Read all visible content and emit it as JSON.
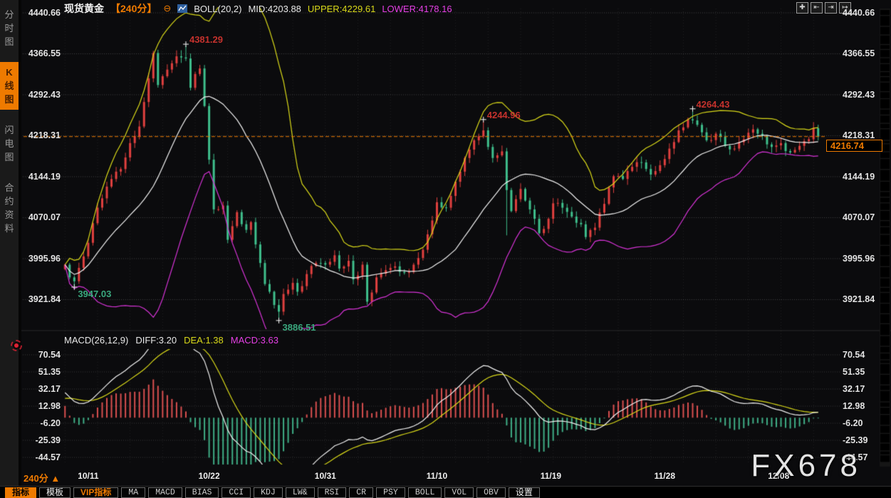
{
  "app": {
    "watermark": "FX678"
  },
  "sidebar": {
    "tabs": [
      {
        "name": "time-share-chart",
        "label": "分时图",
        "active": false
      },
      {
        "name": "kline-chart",
        "label": "K线图",
        "active": true
      },
      {
        "name": "flash-chart",
        "label": "闪电图",
        "active": false
      },
      {
        "name": "contract-info",
        "label": "合约资料",
        "active": false
      }
    ]
  },
  "header": {
    "symbol": "现货黄金",
    "period": "【240分】",
    "minus_icon": "⊖",
    "boll": "BOLL(20,2)",
    "mid": "MID:4203.88",
    "upper": "UPPER:4229.61",
    "lower": "LOWER:4178.16"
  },
  "window_controls": [
    {
      "name": "pan-icon",
      "glyph": "✚"
    },
    {
      "name": "scale-x-left-icon",
      "glyph": "⇤"
    },
    {
      "name": "scale-x-right-icon",
      "glyph": "⇥"
    },
    {
      "name": "shift-right-icon",
      "glyph": "↦"
    }
  ],
  "macd_header": {
    "title": "MACD(26,12,9)",
    "diff": "DIFF:3.20",
    "dea": "DEA:1.38",
    "macd": "MACD:3.63"
  },
  "footer": {
    "period": "240分",
    "arrow": "▲"
  },
  "toolbar": {
    "items": [
      {
        "name": "indicator",
        "label": "指标",
        "style": "active",
        "cjk": true
      },
      {
        "name": "template",
        "label": "模板",
        "style": "normal",
        "cjk": true
      },
      {
        "name": "vip-indicator",
        "label": "VIP指标",
        "style": "vip",
        "cjk": true
      },
      {
        "name": "ma",
        "label": "MA",
        "style": "normal",
        "cjk": false
      },
      {
        "name": "macd",
        "label": "MACD",
        "style": "normal",
        "cjk": false
      },
      {
        "name": "bias",
        "label": "BIAS",
        "style": "normal",
        "cjk": false
      },
      {
        "name": "cci",
        "label": "CCI",
        "style": "normal",
        "cjk": false
      },
      {
        "name": "kdj",
        "label": "KDJ",
        "style": "normal",
        "cjk": false
      },
      {
        "name": "lw",
        "label": "LW&",
        "style": "normal",
        "cjk": false
      },
      {
        "name": "rsi",
        "label": "RSI",
        "style": "normal",
        "cjk": false
      },
      {
        "name": "cr",
        "label": "CR",
        "style": "normal",
        "cjk": false
      },
      {
        "name": "psy",
        "label": "PSY",
        "style": "normal",
        "cjk": false
      },
      {
        "name": "boll",
        "label": "BOLL",
        "style": "normal",
        "cjk": false
      },
      {
        "name": "vol",
        "label": "VOL",
        "style": "normal",
        "cjk": false
      },
      {
        "name": "obv",
        "label": "OBV",
        "style": "normal",
        "cjk": false
      },
      {
        "name": "settings",
        "label": "设置",
        "style": "normal",
        "cjk": true
      }
    ]
  },
  "chart_data": {
    "type": "candlestick",
    "symbol": "现货黄金",
    "interval": "240分",
    "y_ticks": [
      "4440.66",
      "4366.55",
      "4292.43",
      "4218.31",
      "4144.19",
      "4070.07",
      "3995.96",
      "3921.84"
    ],
    "macd_y_ticks": [
      "70.54",
      "51.35",
      "32.17",
      "12.98",
      "-6.20",
      "-25.39",
      "-44.57"
    ],
    "x_ticks": [
      {
        "label": "10/11",
        "index": 5
      },
      {
        "label": "10/22",
        "index": 31
      },
      {
        "label": "10/31",
        "index": 56
      },
      {
        "label": "11/10",
        "index": 80
      },
      {
        "label": "11/19",
        "index": 104.5
      },
      {
        "label": "11/28",
        "index": 129
      },
      {
        "label": "12/08",
        "index": 153.5
      }
    ],
    "current_price": 4216.74,
    "current_price_label": "4216.74",
    "candle_count": 163,
    "close_anchors": [
      [
        0,
        3985
      ],
      [
        1,
        3962
      ],
      [
        2,
        3955
      ],
      [
        4,
        4000
      ],
      [
        6,
        4060
      ],
      [
        8,
        4105
      ],
      [
        10,
        4140
      ],
      [
        12,
        4158
      ],
      [
        14,
        4205
      ],
      [
        16,
        4235
      ],
      [
        18,
        4322
      ],
      [
        19,
        4368
      ],
      [
        20,
        4310
      ],
      [
        22,
        4338
      ],
      [
        24,
        4362
      ],
      [
        26,
        4358
      ],
      [
        27,
        4305
      ],
      [
        28,
        4330
      ],
      [
        29,
        4340
      ],
      [
        30,
        4272
      ],
      [
        31,
        4175
      ],
      [
        32,
        4085
      ],
      [
        34,
        4092
      ],
      [
        35,
        4030
      ],
      [
        37,
        4080
      ],
      [
        39,
        4048
      ],
      [
        40,
        4062
      ],
      [
        42,
        3988
      ],
      [
        43,
        3950
      ],
      [
        45,
        3912
      ],
      [
        46,
        3900
      ],
      [
        47,
        3932
      ],
      [
        49,
        3952
      ],
      [
        50,
        3936
      ],
      [
        52,
        3968
      ],
      [
        54,
        3988
      ],
      [
        56,
        3985
      ],
      [
        58,
        4002
      ],
      [
        59,
        3978
      ],
      [
        61,
        3992
      ],
      [
        62,
        3958
      ],
      [
        64,
        3985
      ],
      [
        65,
        3918
      ],
      [
        67,
        3962
      ],
      [
        69,
        3975
      ],
      [
        71,
        3982
      ],
      [
        73,
        3970
      ],
      [
        75,
        3985
      ],
      [
        77,
        4012
      ],
      [
        79,
        4065
      ],
      [
        80,
        4098
      ],
      [
        82,
        4088
      ],
      [
        84,
        4135
      ],
      [
        86,
        4178
      ],
      [
        88,
        4210
      ],
      [
        90,
        4228
      ],
      [
        91,
        4198
      ],
      [
        92,
        4178
      ],
      [
        94,
        4190
      ],
      [
        95,
        4120
      ],
      [
        96,
        4082
      ],
      [
        98,
        4122
      ],
      [
        100,
        4085
      ],
      [
        102,
        4042
      ],
      [
        104,
        4068
      ],
      [
        105,
        4096
      ],
      [
        107,
        4088
      ],
      [
        109,
        4072
      ],
      [
        111,
        4058
      ],
      [
        112,
        4035
      ],
      [
        114,
        4052
      ],
      [
        116,
        4095
      ],
      [
        118,
        4145
      ],
      [
        120,
        4140
      ],
      [
        122,
        4162
      ],
      [
        124,
        4170
      ],
      [
        126,
        4148
      ],
      [
        128,
        4165
      ],
      [
        130,
        4195
      ],
      [
        132,
        4228
      ],
      [
        134,
        4248
      ],
      [
        135,
        4246
      ],
      [
        136,
        4238
      ],
      [
        138,
        4210
      ],
      [
        140,
        4222
      ],
      [
        142,
        4200
      ],
      [
        144,
        4195
      ],
      [
        146,
        4212
      ],
      [
        148,
        4230
      ],
      [
        150,
        4218
      ],
      [
        152,
        4198
      ],
      [
        154,
        4205
      ],
      [
        156,
        4188
      ],
      [
        158,
        4200
      ],
      [
        160,
        4212
      ],
      [
        161,
        4232
      ],
      [
        162,
        4216.74
      ]
    ],
    "annotations": [
      {
        "label": "4381.29",
        "index": 26,
        "price": 4381.29,
        "kind": "high"
      },
      {
        "label": "4244.96",
        "index": 90,
        "price": 4244.96,
        "kind": "high"
      },
      {
        "label": "4264.43",
        "index": 135,
        "price": 4264.43,
        "kind": "high"
      },
      {
        "label": "3947.03",
        "index": 2,
        "price": 3947.03,
        "kind": "low"
      },
      {
        "label": "3886.51",
        "index": 46,
        "price": 3886.51,
        "kind": "low"
      }
    ],
    "wick_overrides": [
      {
        "index": 95,
        "low": 4038
      },
      {
        "index": 19,
        "high": 4372
      },
      {
        "index": 161,
        "high": 4243
      }
    ],
    "indicators": {
      "boll": {
        "period": 20,
        "k": 2
      },
      "macd": {
        "fast": 12,
        "slow": 26,
        "signal": 9
      }
    },
    "styles": {
      "up_color": "#e0403f",
      "down_color": "#3fbf8c",
      "boll_mid": "#f2f2f2",
      "boll_upper": "#d9d919",
      "boll_lower": "#d633d6",
      "macd_diff": "#f2f2f2",
      "macd_dea": "#d9d919",
      "hist_up": "#d94f4f",
      "hist_down": "#3fae86",
      "current_line": "#ee7a00",
      "annotation_high": "#c5322d",
      "annotation_low": "#3aa87e"
    }
  }
}
